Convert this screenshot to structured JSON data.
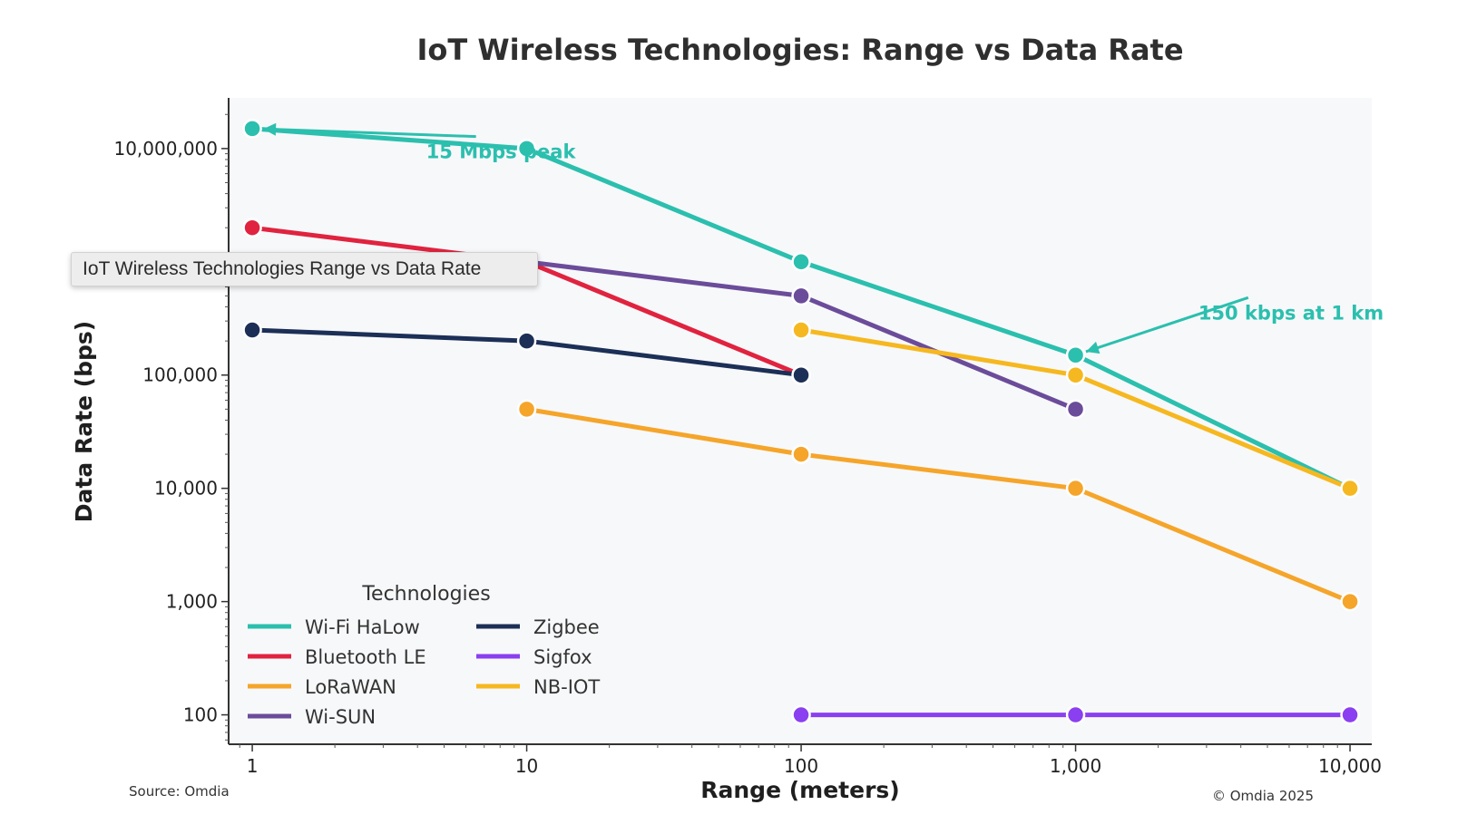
{
  "tooltip": {
    "text": "IoT Wireless Technologies Range vs Data Rate"
  },
  "footer": {
    "source": "Source: Omdia",
    "copyright": "© Omdia 2025"
  },
  "chart_data": {
    "type": "line",
    "title": "IoT Wireless Technologies: Range vs Data Rate",
    "xlabel": "Range (meters)",
    "ylabel": "Data Rate (bps)",
    "xscale": "log",
    "yscale": "log",
    "xlim": [
      0.82,
      12000
    ],
    "ylim": [
      55,
      28000000
    ],
    "grid": false,
    "x_ticks": [
      {
        "value": 1,
        "label": "1"
      },
      {
        "value": 10,
        "label": "10"
      },
      {
        "value": 100,
        "label": "100"
      },
      {
        "value": 1000,
        "label": "1,000"
      },
      {
        "value": 10000,
        "label": "10,000"
      }
    ],
    "y_ticks": [
      {
        "value": 100,
        "label": "100"
      },
      {
        "value": 1000,
        "label": "1,000"
      },
      {
        "value": 10000,
        "label": "10,000"
      },
      {
        "value": 100000,
        "label": "100,000"
      },
      {
        "value": 10000000,
        "label": "10,000,000"
      }
    ],
    "series": [
      {
        "name": "Wi-Fi HaLow",
        "color": "#2bbfae",
        "x": [
          1,
          10,
          100,
          1000,
          10000
        ],
        "y": [
          15000000,
          10000000,
          1000000,
          150000,
          10000
        ]
      },
      {
        "name": "Bluetooth LE",
        "color": "#e0233f",
        "x": [
          1,
          10,
          100
        ],
        "y": [
          2000000,
          1000000,
          100000
        ]
      },
      {
        "name": "LoRaWAN",
        "color": "#f5a52a",
        "x": [
          10,
          100,
          1000,
          10000
        ],
        "y": [
          50000,
          20000,
          10000,
          1000
        ]
      },
      {
        "name": "Wi-SUN",
        "color": "#6b4c9a",
        "x": [
          10,
          100,
          1000
        ],
        "y": [
          1000000,
          500000,
          50000
        ]
      },
      {
        "name": "Zigbee",
        "color": "#1c2f57",
        "x": [
          1,
          10,
          100
        ],
        "y": [
          250000,
          200000,
          100000
        ]
      },
      {
        "name": "Sigfox",
        "color": "#8a3ff0",
        "x": [
          100,
          1000,
          10000
        ],
        "y": [
          100,
          100,
          100
        ]
      },
      {
        "name": "NB-IOT",
        "color": "#f6b820",
        "x": [
          100,
          1000,
          10000
        ],
        "y": [
          250000,
          100000,
          10000
        ]
      }
    ],
    "annotations": [
      {
        "text": "15 Mbps peak",
        "color": "#2bbfae",
        "point": [
          1,
          15000000
        ],
        "label_at": [
          4.3,
          8200000
        ]
      },
      {
        "text": "150 kbps at 1 km",
        "color": "#2bbfae",
        "point": [
          1000,
          150000
        ],
        "label_at": [
          2800,
          310000
        ]
      }
    ],
    "legend": {
      "title": "Technologies",
      "placement": "lower-left",
      "columns": 2
    }
  }
}
